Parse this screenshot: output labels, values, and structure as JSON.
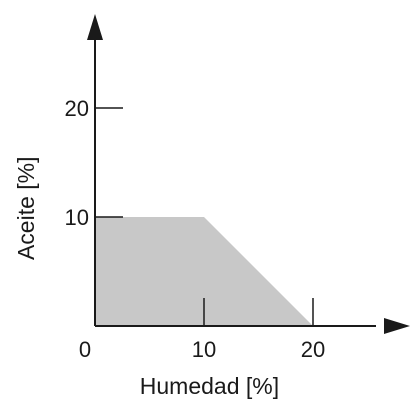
{
  "chart_data": {
    "type": "area",
    "xlabel": "Humedad [%]",
    "ylabel": "Aceite [%]",
    "xlim": [
      0,
      27
    ],
    "ylim": [
      0,
      27
    ],
    "xticks": [
      {
        "value": 0,
        "label": "0"
      },
      {
        "value": 10,
        "label": "10"
      },
      {
        "value": 20,
        "label": "20"
      }
    ],
    "yticks": [
      {
        "value": 10,
        "label": "10"
      },
      {
        "value": 20,
        "label": "20"
      }
    ],
    "grid": false,
    "region": {
      "fill": "#c8c8c8",
      "points": [
        {
          "x": 0,
          "y": 0
        },
        {
          "x": 0,
          "y": 10
        },
        {
          "x": 10,
          "y": 10
        },
        {
          "x": 20,
          "y": 0
        }
      ]
    },
    "colors": {
      "axis": "#1a1a1a",
      "fill": "#c8c8c8"
    }
  }
}
